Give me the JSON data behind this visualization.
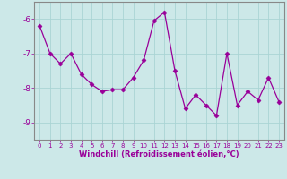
{
  "x": [
    0,
    1,
    2,
    3,
    4,
    5,
    6,
    7,
    8,
    9,
    10,
    11,
    12,
    13,
    14,
    15,
    16,
    17,
    18,
    19,
    20,
    21,
    22,
    23
  ],
  "y": [
    -6.2,
    -7.0,
    -7.3,
    -7.0,
    -7.6,
    -7.9,
    -8.1,
    -8.05,
    -8.05,
    -7.7,
    -7.2,
    -6.05,
    -5.8,
    -7.5,
    -8.6,
    -8.2,
    -8.5,
    -8.8,
    -7.0,
    -8.5,
    -8.1,
    -8.35,
    -7.7,
    -8.4
  ],
  "ylim": [
    -9.5,
    -5.5
  ],
  "xlim": [
    -0.5,
    23.5
  ],
  "yticks": [
    -9,
    -8,
    -7,
    -6
  ],
  "xticks": [
    0,
    1,
    2,
    3,
    4,
    5,
    6,
    7,
    8,
    9,
    10,
    11,
    12,
    13,
    14,
    15,
    16,
    17,
    18,
    19,
    20,
    21,
    22,
    23
  ],
  "xlabel": "Windchill (Refroidissement éolien,°C)",
  "line_color": "#990099",
  "marker": "D",
  "marker_size": 2.5,
  "bg_color": "#cce8e8",
  "grid_color": "#aad4d4",
  "axis_label_color": "#990099",
  "tick_color": "#990099",
  "spine_color": "#888888"
}
